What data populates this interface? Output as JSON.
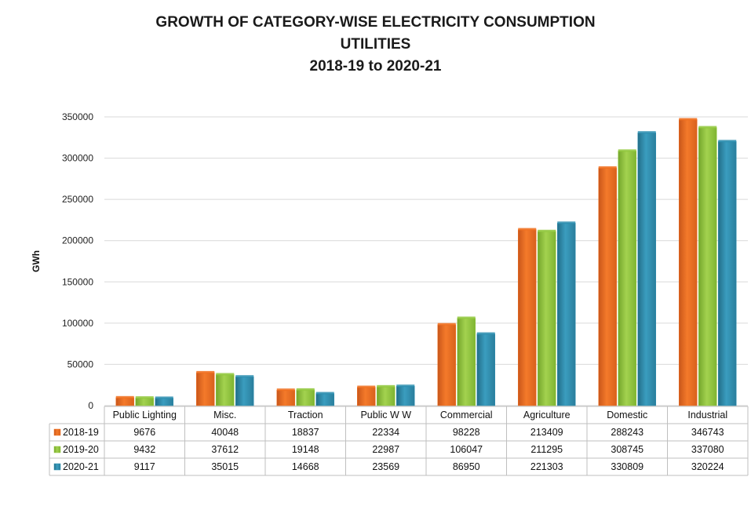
{
  "chart_data": {
    "type": "bar",
    "title": "GROWTH OF CATEGORY-WISE ELECTRICITY CONSUMPTION",
    "subtitle_1": "UTILITIES",
    "subtitle_2": "2018-19 to 2020-21",
    "ylabel": "GWh",
    "xlabel": "",
    "ylim": [
      0,
      350000
    ],
    "yticks": [
      0,
      50000,
      100000,
      150000,
      200000,
      250000,
      300000,
      350000
    ],
    "grid": true,
    "legend_placement": "data-table-left",
    "categories": [
      "Public Lighting",
      "Misc.",
      "Traction",
      "Public W W",
      "Commercial",
      "Agriculture",
      "Domestic",
      "Industrial"
    ],
    "series": [
      {
        "name": "2018-19",
        "color": "#f07020",
        "values": [
          9676,
          40048,
          18837,
          22334,
          98228,
          213409,
          288243,
          346743
        ]
      },
      {
        "name": "2019-20",
        "color": "#92c83e",
        "values": [
          9432,
          37612,
          19148,
          22987,
          106047,
          211295,
          308745,
          337080
        ]
      },
      {
        "name": "2020-21",
        "color": "#2f8fb0",
        "values": [
          9117,
          35015,
          14668,
          23569,
          86950,
          221303,
          330809,
          320224
        ]
      }
    ]
  }
}
